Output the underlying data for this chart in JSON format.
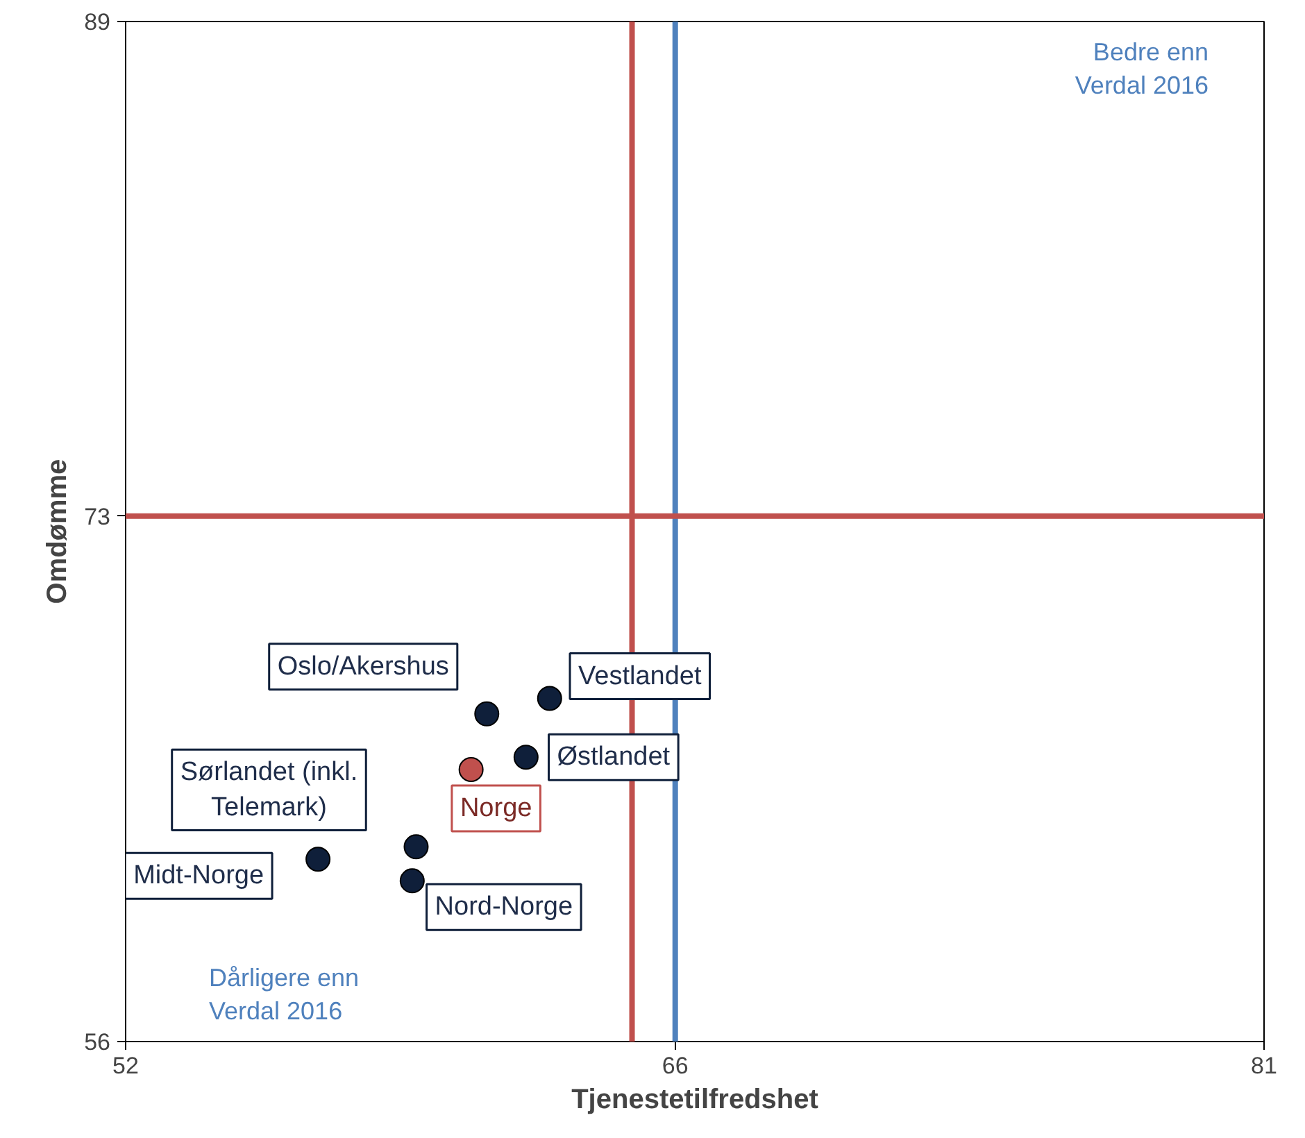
{
  "chart_data": {
    "type": "scatter",
    "xlabel": "Tjenestetilfredshet",
    "ylabel": "Omdømme",
    "xlim": [
      52,
      81
    ],
    "xticks": [
      52,
      66,
      81
    ],
    "ylim": [
      56,
      89
    ],
    "yticks": [
      56,
      73,
      89
    ],
    "marker": "circle",
    "series": [
      {
        "name": "Oslo/Akershus",
        "color": "#0f1f3a",
        "x": [
          61.2
        ],
        "values": [
          66.6
        ]
      },
      {
        "name": "Vestlandet",
        "color": "#0f1f3a",
        "x": [
          62.8
        ],
        "values": [
          67.1
        ]
      },
      {
        "name": "Østlandet",
        "color": "#0f1f3a",
        "x": [
          62.2
        ],
        "values": [
          65.2
        ]
      },
      {
        "name": "Norge",
        "color": "#c0504d",
        "x": [
          60.8
        ],
        "values": [
          64.8
        ]
      },
      {
        "name": "Midt-Norge",
        "color": "#0f1f3a",
        "x": [
          56.9
        ],
        "values": [
          61.9
        ]
      },
      {
        "name": "Sørlandet (inkl.\nTelemark)",
        "color": "#0f1f3a",
        "x": [
          59.4
        ],
        "values": [
          62.3
        ]
      },
      {
        "name": "Nord-Norge",
        "color": "#0f1f3a",
        "x": [
          59.3
        ],
        "values": [
          61.2
        ]
      }
    ],
    "ref_lines": [
      {
        "axis": "x",
        "value": 64.9,
        "color": "#c0504d"
      },
      {
        "axis": "x",
        "value": 66,
        "color": "#4f81bd"
      },
      {
        "axis": "y",
        "value": 73,
        "color": "#c0504d"
      }
    ],
    "annotations": [
      "Bedre enn\nVerdal 2016",
      "Dårligere enn\nVerdal 2016"
    ]
  }
}
